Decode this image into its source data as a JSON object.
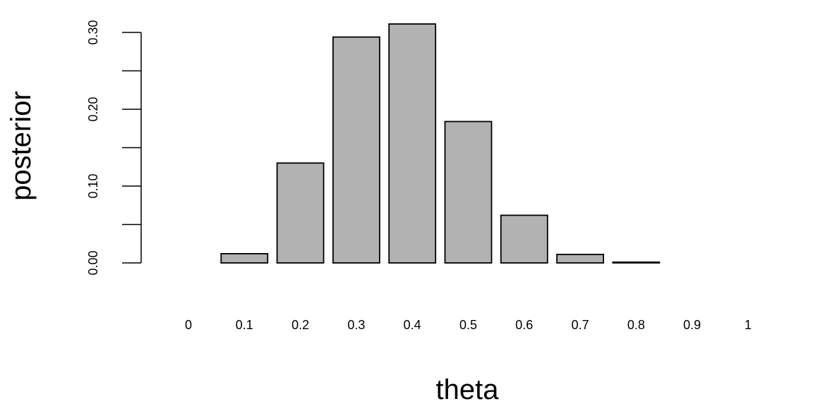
{
  "chart_data": {
    "type": "bar",
    "title": "",
    "xlabel": "theta",
    "ylabel": "posterior",
    "categories": [
      "0",
      "0.1",
      "0.2",
      "0.3",
      "0.4",
      "0.5",
      "0.6",
      "0.7",
      "0.8",
      "0.9",
      "1"
    ],
    "values": [
      0.0,
      0.012,
      0.13,
      0.294,
      0.311,
      0.184,
      0.062,
      0.011,
      0.001,
      0.0,
      0.0
    ],
    "ylim": [
      0,
      0.3
    ],
    "yticks": [
      0.0,
      0.05,
      0.1,
      0.15,
      0.2,
      0.25,
      0.3
    ],
    "ytick_labels": [
      "0.00",
      "",
      "0.10",
      "",
      "0.20",
      "",
      "0.30"
    ],
    "grid": false,
    "bar_fill": "#b2b2b2",
    "bar_stroke": "#000000"
  }
}
